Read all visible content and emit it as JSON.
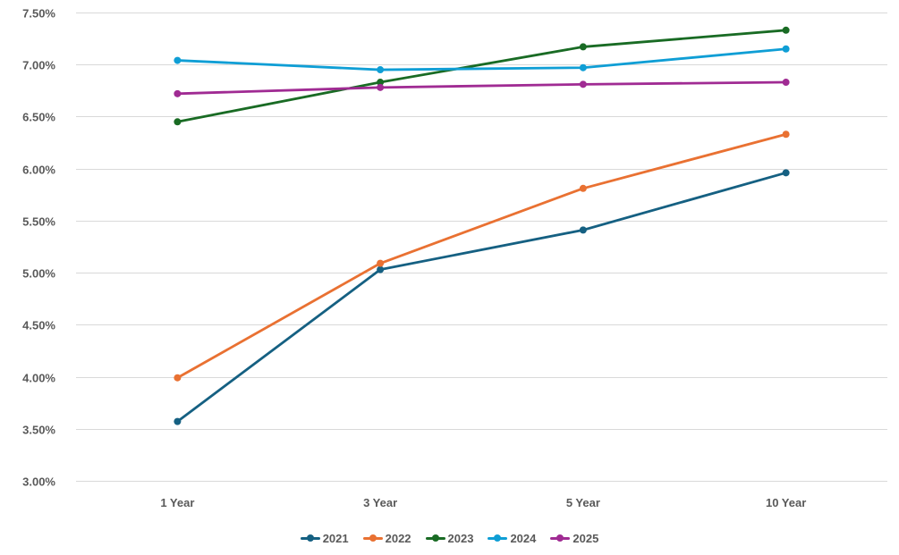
{
  "chart_data": {
    "type": "line",
    "categories": [
      "1 Year",
      "3 Year",
      "5 Year",
      "10 Year"
    ],
    "series": [
      {
        "name": "2021",
        "color": "#156082",
        "values": [
          3.57,
          5.03,
          5.41,
          5.96
        ]
      },
      {
        "name": "2022",
        "color": "#E97132",
        "values": [
          3.99,
          5.09,
          5.81,
          6.33
        ]
      },
      {
        "name": "2023",
        "color": "#196B24",
        "values": [
          6.45,
          6.83,
          7.17,
          7.33
        ]
      },
      {
        "name": "2024",
        "color": "#0F9ED5",
        "values": [
          7.04,
          6.95,
          6.97,
          7.15
        ]
      },
      {
        "name": "2025",
        "color": "#A02B93",
        "values": [
          6.72,
          6.78,
          6.81,
          6.83
        ]
      }
    ],
    "title": "",
    "xlabel": "",
    "ylabel": "",
    "ylim": [
      3.0,
      7.5
    ],
    "ytick_step": 0.5,
    "ytick_labels": [
      "3.00%",
      "3.50%",
      "4.00%",
      "4.50%",
      "5.00%",
      "5.50%",
      "6.00%",
      "6.50%",
      "7.00%",
      "7.50%"
    ],
    "grid": true,
    "legend_position": "bottom",
    "legend_labels": [
      "2021",
      "2022",
      "2023",
      "2024",
      "2025"
    ]
  },
  "styles": {
    "grid_color": "#D9D9D9",
    "label_color": "#595959",
    "background": "#FFFFFF"
  }
}
